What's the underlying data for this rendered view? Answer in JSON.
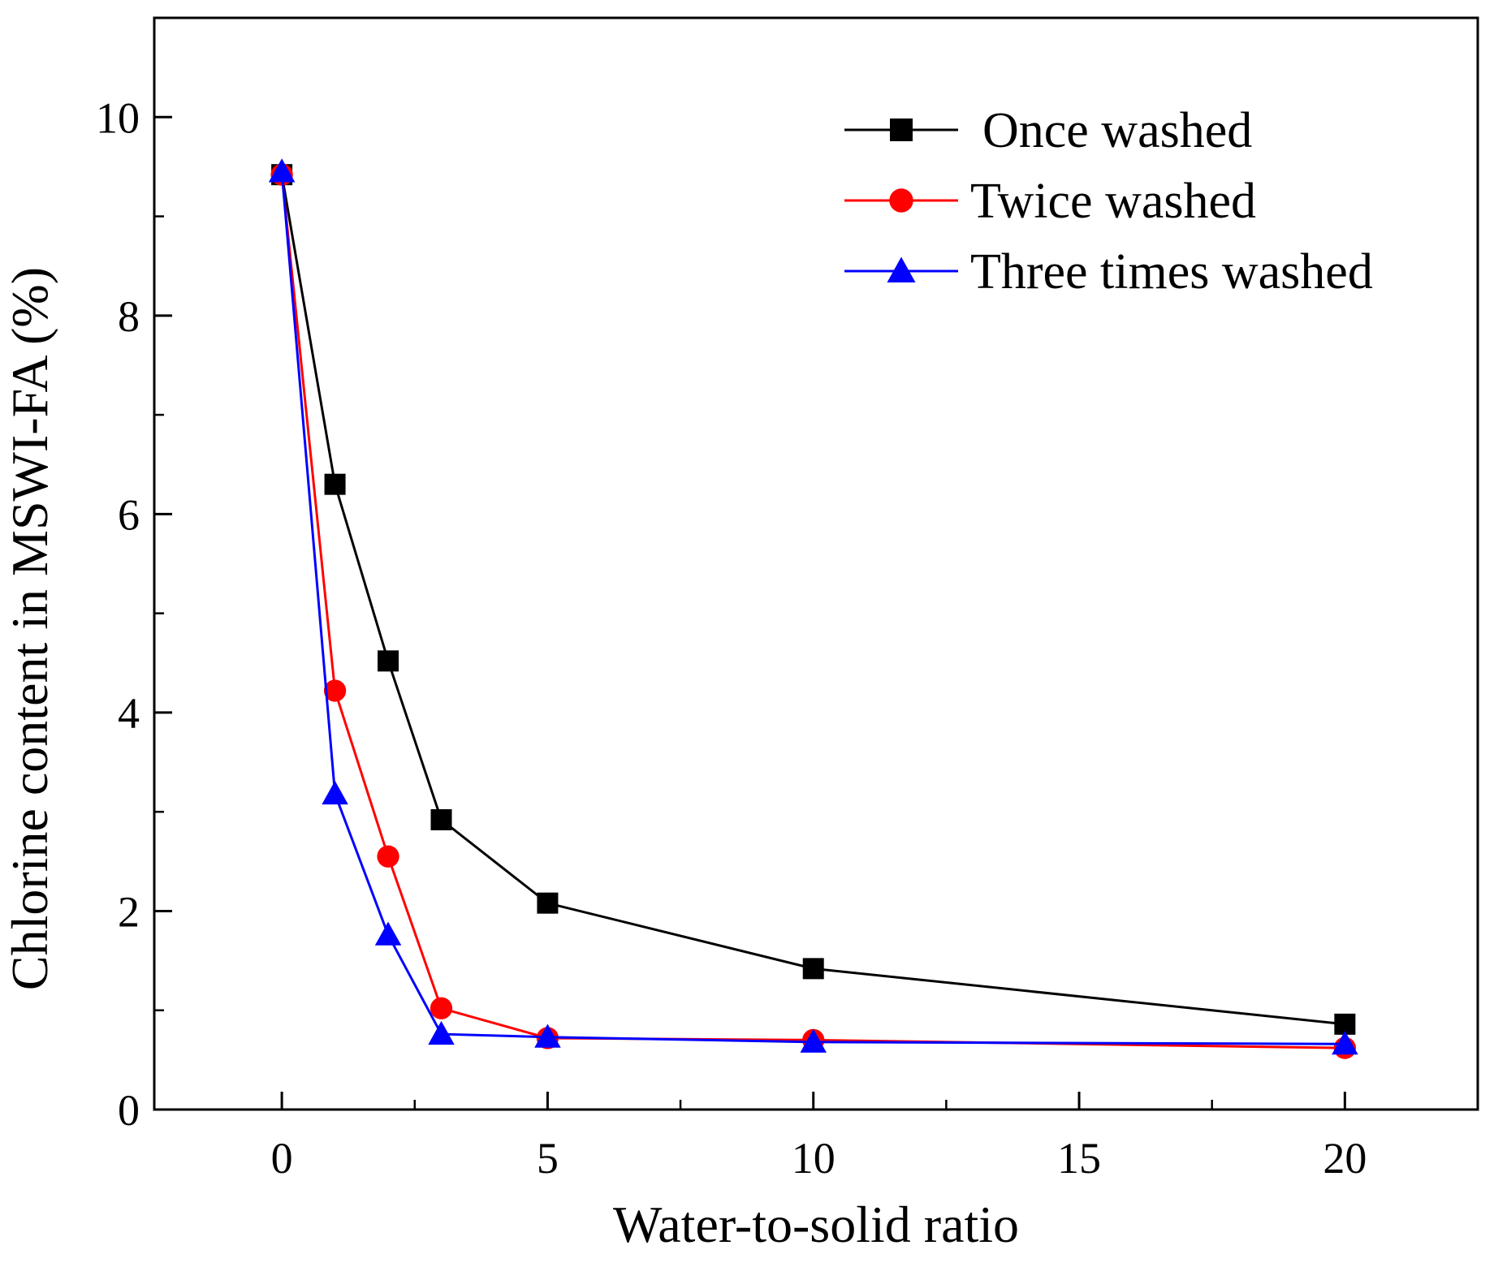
{
  "chart_data": {
    "type": "line",
    "title": "",
    "xlabel": "Water-to-solid ratio",
    "ylabel": "Chlorine content in MSWI-FA (%)",
    "xlim": [
      -2.4,
      22.5
    ],
    "ylim": [
      0,
      11
    ],
    "xticks": [
      0,
      5,
      10,
      15,
      20
    ],
    "xtick_labels": [
      "0",
      "5",
      "10",
      "15",
      "20"
    ],
    "yticks": [
      0,
      2,
      4,
      6,
      8,
      10
    ],
    "ytick_labels": [
      "0",
      "2",
      "4",
      "6",
      "8",
      "10"
    ],
    "x_minor_step": 2.5,
    "y_minor_step": 1,
    "grid": false,
    "legend_position": "top-right",
    "x": [
      0,
      1,
      2,
      3,
      5,
      10,
      20
    ],
    "series": [
      {
        "name": "Once washed",
        "color": "#000000",
        "marker": "square",
        "values": [
          9.42,
          6.3,
          4.52,
          2.92,
          2.08,
          1.42,
          0.86
        ]
      },
      {
        "name": "Twice washed",
        "color": "#ff0000",
        "marker": "circle",
        "values": [
          9.42,
          4.22,
          2.55,
          1.02,
          0.72,
          0.7,
          0.62
        ]
      },
      {
        "name": "Three times washed",
        "color": "#0000ff",
        "marker": "triangle",
        "values": [
          9.45,
          3.18,
          1.76,
          0.76,
          0.73,
          0.68,
          0.66
        ]
      }
    ]
  }
}
